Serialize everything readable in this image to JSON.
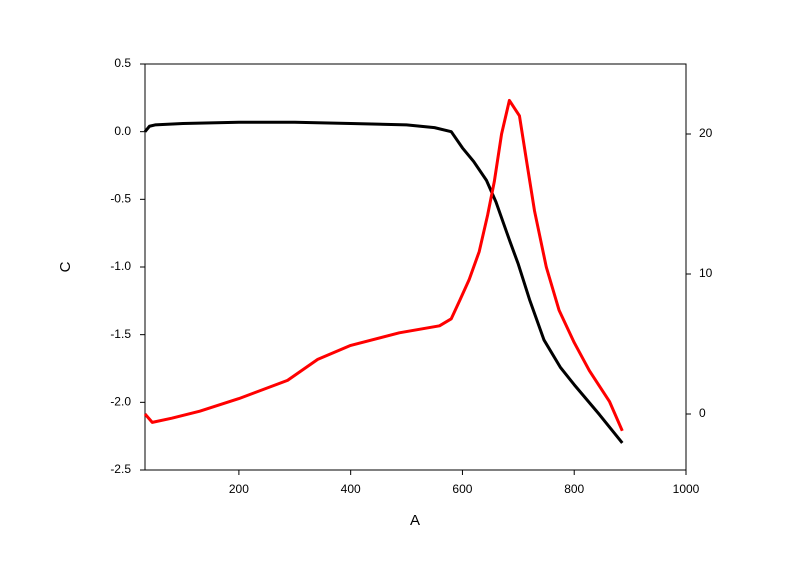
{
  "chart_data": {
    "type": "line",
    "x_label": "A",
    "y_label": "C",
    "xlim": [
      32,
      1000
    ],
    "xticks": [
      200,
      400,
      600,
      800,
      1000
    ],
    "ylim": [
      -2.5,
      0.5
    ],
    "yticks": [
      {
        "value": -2.5,
        "label": "-2.5"
      },
      {
        "value": -2,
        "label": "-2.0"
      },
      {
        "value": -1.5,
        "label": "-1.5"
      },
      {
        "value": -1,
        "label": "-1.0"
      },
      {
        "value": -0.5,
        "label": "-0.5"
      },
      {
        "value": 0,
        "label": "0.0"
      },
      {
        "value": 0.5,
        "label": "0.5"
      }
    ],
    "y2lim": [
      -4,
      25
    ],
    "y2ticks": [
      0,
      10,
      20
    ],
    "series": [
      {
        "color": "#000000",
        "axis": "y",
        "x": [
          32,
          40,
          50,
          100,
          200,
          300,
          400,
          500,
          550,
          580,
          600,
          620,
          643,
          660,
          684,
          700,
          720,
          746,
          775,
          800,
          845,
          886
        ],
        "values": [
          0.0,
          0.04,
          0.05,
          0.06,
          0.07,
          0.07,
          0.06,
          0.05,
          0.03,
          0.0,
          -0.12,
          -0.22,
          -0.36,
          -0.52,
          -0.8,
          -0.98,
          -1.24,
          -1.54,
          -1.74,
          -1.87,
          -2.09,
          -2.3
        ]
      },
      {
        "color": "#ff0000",
        "axis": "y2",
        "x": [
          32,
          45,
          80,
          130,
          200,
          287,
          341,
          400,
          487,
          559,
          580,
          595,
          612,
          630,
          645,
          657,
          670,
          684,
          702,
          715,
          729,
          750,
          773,
          800,
          827,
          863,
          886
        ],
        "values": [
          0,
          -0.6,
          -0.3,
          0.2,
          1.1,
          2.4,
          3.9,
          4.9,
          5.8,
          6.3,
          6.8,
          8.1,
          9.6,
          11.6,
          14.2,
          16.6,
          20,
          22.4,
          21.3,
          18,
          14.5,
          10.5,
          7.4,
          5.1,
          3.1,
          0.9,
          -1.2
        ]
      }
    ]
  }
}
